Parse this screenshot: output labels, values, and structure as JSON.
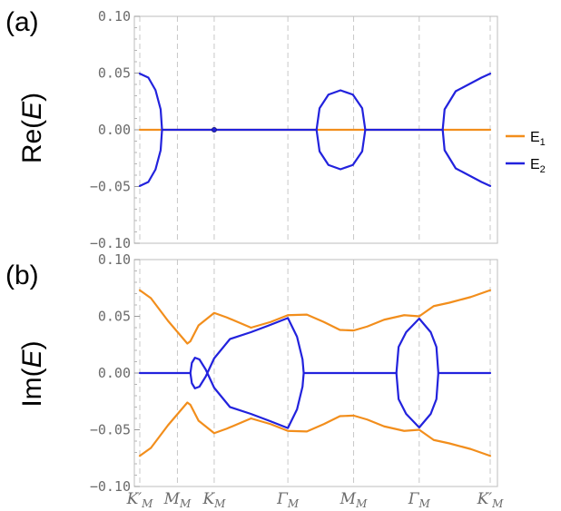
{
  "figure": {
    "panel_a_label": "(a)",
    "panel_b_label": "(b)"
  },
  "legend": [
    {
      "name": "E",
      "sub": "1",
      "color": "#F28E1C"
    },
    {
      "name": "E",
      "sub": "2",
      "color": "#2222DD"
    }
  ],
  "chart_data": [
    {
      "type": "line",
      "panel": "(a)",
      "ylabel": "Re(E)",
      "ylim": [
        -0.1,
        0.1
      ],
      "yticks": [
        "0.10",
        "0.05",
        "0.00",
        "−0.05",
        "−0.10"
      ],
      "ytick_values": [
        0.1,
        0.05,
        0.0,
        -0.05,
        -0.1
      ],
      "xlim": [
        0,
        1
      ],
      "xticks": [
        "K′M",
        "MM",
        "KM",
        "ΓM",
        "MM",
        "ΓM",
        "K′M"
      ],
      "xtick_positions": [
        0,
        0.1074,
        0.2123,
        0.4226,
        0.6102,
        0.7974,
        1.0
      ],
      "grid": "dashed vertical lines at high-symmetry points",
      "series": [
        {
          "name": "E1",
          "color": "#F28E1C",
          "segments": [
            [
              [
                0,
                0
              ],
              [
                1,
                0
              ]
            ]
          ]
        },
        {
          "name": "E2",
          "color": "#2222DD",
          "segments": [
            [
              [
                0.0,
                0.0495
              ],
              [
                0.0244,
                0.046
              ],
              [
                0.0448,
                0.035
              ],
              [
                0.0595,
                0.018
              ],
              [
                0.0635,
                0.0
              ],
              [
                0.0595,
                -0.018
              ],
              [
                0.0448,
                -0.035
              ],
              [
                0.0244,
                -0.046
              ],
              [
                0.0,
                -0.0495
              ]
            ],
            [
              [
                0.0635,
                0.0
              ],
              [
                0.5044,
                0.0
              ]
            ],
            [
              [
                0.5044,
                0.0
              ],
              [
                0.513,
                0.019
              ],
              [
                0.5384,
                0.031
              ],
              [
                0.5727,
                0.0348
              ],
              [
                0.6081,
                0.031
              ],
              [
                0.6347,
                0.019
              ],
              [
                0.6435,
                0.0
              ],
              [
                0.6347,
                -0.019
              ],
              [
                0.6081,
                -0.031
              ],
              [
                0.5727,
                -0.0348
              ],
              [
                0.5384,
                -0.031
              ],
              [
                0.513,
                -0.019
              ],
              [
                0.5044,
                0.0
              ]
            ],
            [
              [
                0.6435,
                0.0
              ],
              [
                0.8644,
                0.0
              ]
            ],
            [
              [
                1.0,
                0.0495
              ],
              [
                0.9752,
                0.046
              ],
              [
                0.9016,
                0.034
              ],
              [
                0.8699,
                0.018
              ],
              [
                0.8644,
                0.0
              ],
              [
                0.8699,
                -0.018
              ],
              [
                0.9016,
                -0.034
              ],
              [
                0.9752,
                -0.046
              ],
              [
                1.0,
                -0.0495
              ]
            ]
          ]
        }
      ],
      "markers": [
        {
          "x": 0.2123,
          "y": 0.0
        }
      ]
    },
    {
      "type": "line",
      "panel": "(b)",
      "ylabel": "Im(E)",
      "ylim": [
        -0.1,
        0.1
      ],
      "yticks": [
        "0.10",
        "0.05",
        "0.00",
        "−0.05",
        "−0.10"
      ],
      "ytick_values": [
        0.1,
        0.05,
        0.0,
        -0.05,
        -0.1
      ],
      "xlim": [
        0,
        1
      ],
      "xticks": [
        "K′M",
        "MM",
        "KM",
        "ΓM",
        "MM",
        "ΓM",
        "K′M"
      ],
      "xtick_positions": [
        0,
        0.1074,
        0.2123,
        0.4226,
        0.6102,
        0.7974,
        1.0
      ],
      "grid": "dashed vertical lines at high-symmetry points",
      "series": [
        {
          "name": "E1",
          "color": "#F28E1C",
          "segments": [
            [
              [
                0.0,
                0.073
              ],
              [
                0.0317,
                0.066
              ],
              [
                0.0805,
                0.046
              ],
              [
                0.1357,
                0.026
              ],
              [
                0.1444,
                0.028
              ],
              [
                0.1677,
                0.042
              ],
              [
                0.2123,
                0.053
              ],
              [
                0.2484,
                0.049
              ],
              [
                0.3174,
                0.04
              ],
              [
                0.3733,
                0.045
              ],
              [
                0.4226,
                0.051
              ],
              [
                0.4767,
                0.0515
              ],
              [
                0.5253,
                0.045
              ],
              [
                0.5712,
                0.038
              ],
              [
                0.6102,
                0.0375
              ],
              [
                0.6491,
                0.041
              ],
              [
                0.6973,
                0.047
              ],
              [
                0.7545,
                0.051
              ],
              [
                0.7974,
                0.05
              ],
              [
                0.8388,
                0.059
              ],
              [
                0.8835,
                0.062
              ],
              [
                0.9445,
                0.067
              ],
              [
                1.0,
                0.073
              ]
            ],
            [
              [
                0.0,
                -0.073
              ],
              [
                0.0317,
                -0.066
              ],
              [
                0.0805,
                -0.046
              ],
              [
                0.1357,
                -0.026
              ],
              [
                0.1444,
                -0.028
              ],
              [
                0.1677,
                -0.042
              ],
              [
                0.2123,
                -0.053
              ],
              [
                0.2484,
                -0.049
              ],
              [
                0.3174,
                -0.04
              ],
              [
                0.3733,
                -0.045
              ],
              [
                0.4226,
                -0.051
              ],
              [
                0.4767,
                -0.0515
              ],
              [
                0.5253,
                -0.045
              ],
              [
                0.5712,
                -0.038
              ],
              [
                0.6102,
                -0.0375
              ],
              [
                0.6491,
                -0.041
              ],
              [
                0.6973,
                -0.047
              ],
              [
                0.7545,
                -0.051
              ],
              [
                0.7974,
                -0.05
              ],
              [
                0.8388,
                -0.059
              ],
              [
                0.8835,
                -0.062
              ],
              [
                0.9445,
                -0.067
              ],
              [
                1.0,
                -0.073
              ]
            ]
          ]
        },
        {
          "name": "E2",
          "color": "#2222DD",
          "segments": [
            [
              [
                0.0,
                0.0
              ],
              [
                0.1444,
                0.0
              ]
            ],
            [
              [
                0.1444,
                0.0
              ],
              [
                0.1486,
                0.009
              ],
              [
                0.1574,
                0.0135
              ],
              [
                0.1702,
                0.012
              ],
              [
                0.1883,
                0.003
              ],
              [
                0.2123,
                -0.013
              ],
              [
                0.2574,
                -0.03
              ],
              [
                0.317,
                -0.036
              ],
              [
                0.3687,
                -0.042
              ],
              [
                0.4226,
                -0.0485
              ],
              [
                0.4487,
                -0.032
              ],
              [
                0.4644,
                -0.012
              ],
              [
                0.4678,
                0.0
              ],
              [
                0.4644,
                0.012
              ],
              [
                0.4487,
                0.032
              ],
              [
                0.4226,
                0.0485
              ],
              [
                0.3687,
                0.042
              ],
              [
                0.317,
                0.036
              ],
              [
                0.2574,
                0.03
              ],
              [
                0.2123,
                0.013
              ],
              [
                0.1883,
                -0.003
              ],
              [
                0.1702,
                -0.012
              ],
              [
                0.1574,
                -0.0135
              ],
              [
                0.1486,
                -0.009
              ],
              [
                0.1444,
                0.0
              ]
            ],
            [
              [
                0.4678,
                0.0
              ],
              [
                0.7323,
                0.0
              ]
            ],
            [
              [
                0.7323,
                0.0
              ],
              [
                0.7386,
                0.023
              ],
              [
                0.7601,
                0.036
              ],
              [
                0.7974,
                0.048
              ],
              [
                0.8303,
                0.036
              ],
              [
                0.8465,
                0.023
              ],
              [
                0.852,
                0.0
              ],
              [
                0.8465,
                -0.023
              ],
              [
                0.8303,
                -0.036
              ],
              [
                0.7974,
                -0.048
              ],
              [
                0.7601,
                -0.036
              ],
              [
                0.7386,
                -0.023
              ],
              [
                0.7323,
                0.0
              ]
            ],
            [
              [
                0.852,
                0.0
              ],
              [
                1.0,
                0.0
              ]
            ]
          ]
        }
      ]
    }
  ]
}
